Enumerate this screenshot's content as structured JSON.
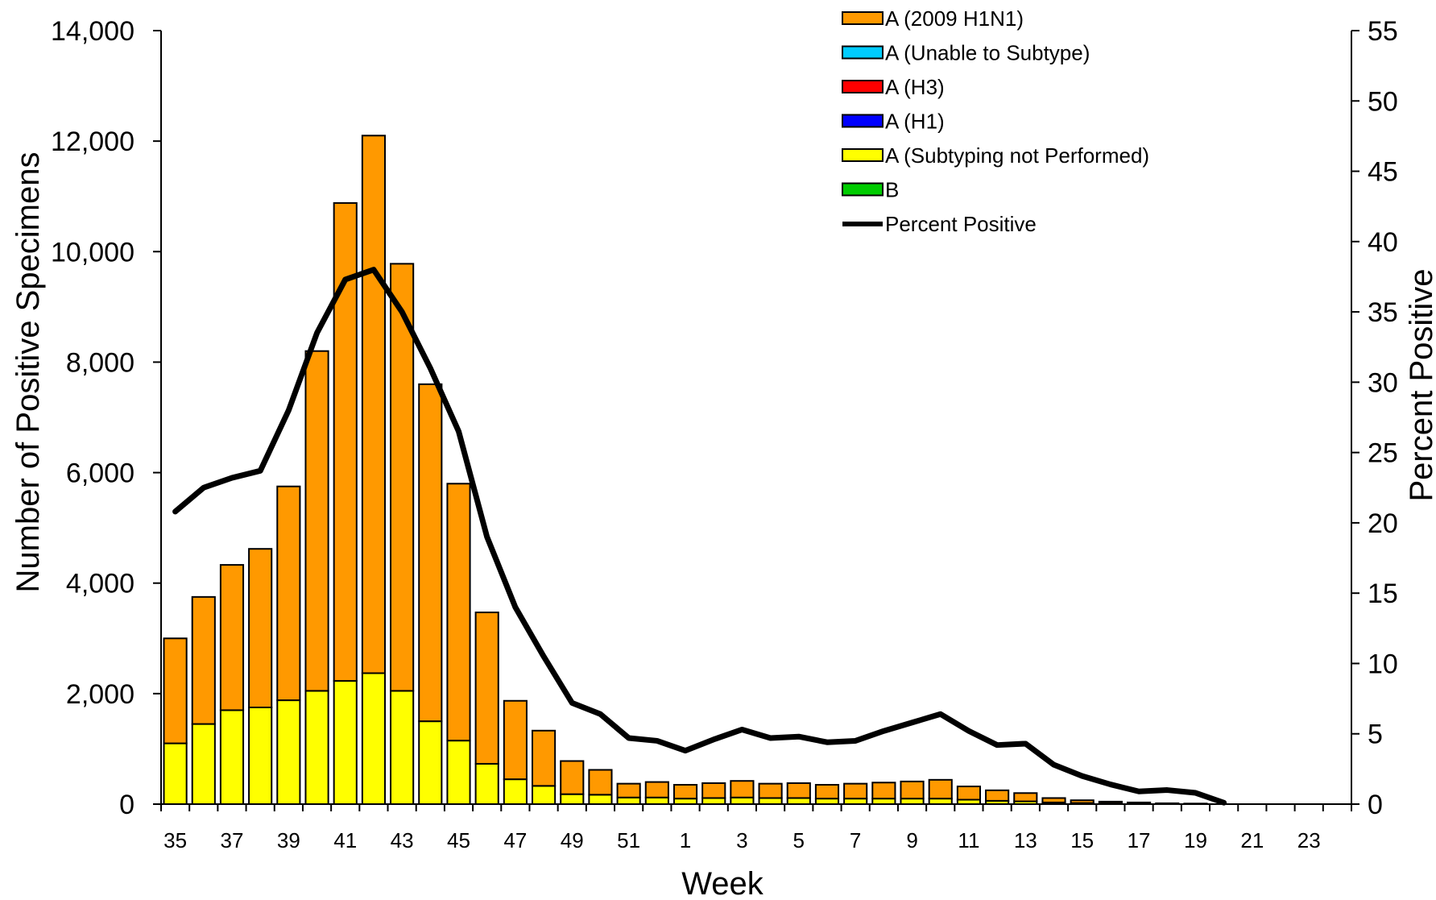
{
  "chart_data": {
    "type": "bar",
    "stacked": true,
    "title": "",
    "xlabel": "Week",
    "ylabel": "Number of Positive Specimens",
    "y2label": "Percent Positive",
    "ylim": [
      0,
      14000
    ],
    "y2lim": [
      0,
      55
    ],
    "yticks": [
      "0",
      "2,000",
      "4,000",
      "6,000",
      "8,000",
      "10,000",
      "12,000",
      "14,000"
    ],
    "y2ticks": [
      "0",
      "5",
      "10",
      "15",
      "20",
      "25",
      "30",
      "35",
      "40",
      "45",
      "50",
      "55"
    ],
    "categories": [
      "35",
      "36",
      "37",
      "38",
      "39",
      "40",
      "41",
      "42",
      "43",
      "44",
      "45",
      "46",
      "47",
      "48",
      "49",
      "50",
      "51",
      "52",
      "1",
      "2",
      "3",
      "4",
      "5",
      "6",
      "7",
      "8",
      "9",
      "10",
      "11",
      "12",
      "13",
      "14",
      "15",
      "16",
      "17",
      "18",
      "19",
      "20",
      "21",
      "22",
      "23",
      "24"
    ],
    "x_tick_labels": [
      "35",
      "37",
      "39",
      "41",
      "43",
      "45",
      "47",
      "49",
      "51",
      "1",
      "3",
      "5",
      "7",
      "9",
      "11",
      "13",
      "15",
      "17",
      "19",
      "21",
      "23"
    ],
    "grid": false,
    "legend_position": "top-center",
    "series": [
      {
        "name": "A (Subtyping not Performed)",
        "kind": "bar",
        "color": "#ffff00",
        "values": [
          1100,
          1450,
          1700,
          1750,
          1880,
          2050,
          2230,
          2370,
          2050,
          1500,
          1150,
          730,
          450,
          330,
          180,
          170,
          120,
          120,
          100,
          110,
          120,
          110,
          110,
          100,
          100,
          100,
          100,
          100,
          80,
          60,
          50,
          30,
          20,
          15,
          10,
          5,
          5,
          0,
          0,
          0,
          0,
          0
        ]
      },
      {
        "name": "B",
        "kind": "bar",
        "color": "#00cc00",
        "values": [
          0,
          0,
          0,
          0,
          0,
          0,
          0,
          0,
          0,
          0,
          0,
          0,
          0,
          0,
          0,
          0,
          0,
          0,
          0,
          0,
          0,
          0,
          0,
          0,
          0,
          0,
          0,
          0,
          0,
          0,
          0,
          0,
          0,
          0,
          0,
          0,
          0,
          0,
          0,
          0,
          0,
          0
        ]
      },
      {
        "name": "A (H1)",
        "kind": "bar",
        "color": "#0000ff",
        "values": [
          0,
          0,
          0,
          0,
          0,
          0,
          0,
          0,
          0,
          0,
          0,
          0,
          0,
          0,
          0,
          0,
          0,
          0,
          0,
          0,
          0,
          0,
          0,
          0,
          0,
          0,
          0,
          0,
          0,
          0,
          0,
          0,
          0,
          0,
          0,
          0,
          0,
          0,
          0,
          0,
          0,
          0
        ]
      },
      {
        "name": "A (H3)",
        "kind": "bar",
        "color": "#ff0000",
        "values": [
          0,
          0,
          0,
          0,
          0,
          0,
          0,
          0,
          0,
          0,
          0,
          0,
          0,
          0,
          0,
          0,
          0,
          0,
          0,
          0,
          0,
          0,
          0,
          0,
          0,
          0,
          0,
          0,
          0,
          0,
          0,
          0,
          0,
          0,
          0,
          0,
          0,
          0,
          0,
          0,
          0,
          0
        ]
      },
      {
        "name": "A (Unable to Subtype)",
        "kind": "bar",
        "color": "#00ccff",
        "values": [
          0,
          0,
          0,
          0,
          0,
          0,
          0,
          0,
          0,
          0,
          0,
          0,
          0,
          0,
          0,
          0,
          0,
          0,
          0,
          0,
          0,
          0,
          0,
          0,
          0,
          0,
          0,
          0,
          0,
          0,
          0,
          0,
          0,
          0,
          0,
          0,
          0,
          0,
          0,
          0,
          0,
          0
        ]
      },
      {
        "name": "A (2009 H1N1)",
        "kind": "bar",
        "color": "#ff9900",
        "values": [
          1900,
          2300,
          2630,
          2870,
          3870,
          6150,
          8650,
          9730,
          7730,
          6100,
          4650,
          2740,
          1420,
          1000,
          600,
          450,
          250,
          280,
          250,
          270,
          300,
          260,
          270,
          250,
          270,
          290,
          310,
          340,
          240,
          190,
          150,
          80,
          50,
          30,
          20,
          10,
          5,
          0,
          0,
          0,
          0,
          0
        ]
      },
      {
        "name": "Percent Positive",
        "kind": "line",
        "axis": "y2",
        "color": "#000000",
        "values": [
          20.8,
          22.5,
          23.2,
          23.7,
          28,
          33.5,
          37.3,
          38,
          35,
          31,
          26.5,
          19,
          14,
          10.5,
          7.2,
          6.4,
          4.7,
          4.5,
          3.8,
          4.6,
          5.3,
          4.7,
          4.8,
          4.4,
          4.5,
          5.2,
          5.8,
          6.4,
          5.2,
          4.2,
          4.3,
          2.8,
          2,
          1.4,
          0.9,
          1,
          0.8,
          0.1,
          null,
          null,
          null,
          null
        ]
      }
    ]
  }
}
